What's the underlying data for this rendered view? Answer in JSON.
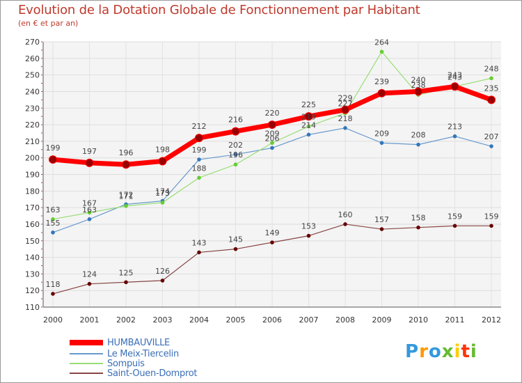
{
  "header": {
    "title": "Evolution de la Dotation Globale de Fonctionnement par Habitant",
    "subtitle": "(en € et par an)"
  },
  "logo": {
    "text": "Proxiti"
  },
  "chart_data": {
    "type": "line",
    "title": "Evolution de la Dotation Globale de Fonctionnement par Habitant",
    "subtitle": "(en € et par an)",
    "xlabel": "",
    "ylabel": "",
    "ylim": [
      110,
      270
    ],
    "yticks": [
      110,
      120,
      130,
      140,
      150,
      160,
      170,
      180,
      190,
      200,
      210,
      220,
      230,
      240,
      250,
      260,
      270
    ],
    "x": [
      "2000",
      "2001",
      "2002",
      "2003",
      "2004",
      "2005",
      "2006",
      "2007",
      "2008",
      "2009",
      "2010",
      "2011",
      "2012"
    ],
    "grid": true,
    "legend_position": "bottom-left",
    "series": [
      {
        "name": "HUMBAUVILLE",
        "color": "#ff0000",
        "marker": "#990000",
        "width": 7,
        "values": [
          199,
          197,
          196,
          198,
          212,
          216,
          220,
          225,
          229,
          239,
          240,
          243,
          235
        ]
      },
      {
        "name": "Le Meix-Tiercelin",
        "color": "#6699cc",
        "marker": "#3377bb",
        "width": 1.2,
        "values": [
          155,
          163,
          172,
          174,
          199,
          202,
          206,
          214,
          218,
          209,
          208,
          213,
          207
        ]
      },
      {
        "name": "Sompuis",
        "color": "#99dd77",
        "marker": "#66cc33",
        "width": 1.2,
        "values": [
          163,
          167,
          171,
          173,
          188,
          196,
          209,
          219,
          227,
          264,
          238,
          243,
          248
        ]
      },
      {
        "name": "Saint-Ouen-Domprot",
        "color": "#884444",
        "marker": "#660000",
        "width": 1.2,
        "values": [
          118,
          124,
          125,
          126,
          143,
          145,
          149,
          153,
          160,
          157,
          158,
          159,
          159
        ]
      }
    ]
  }
}
